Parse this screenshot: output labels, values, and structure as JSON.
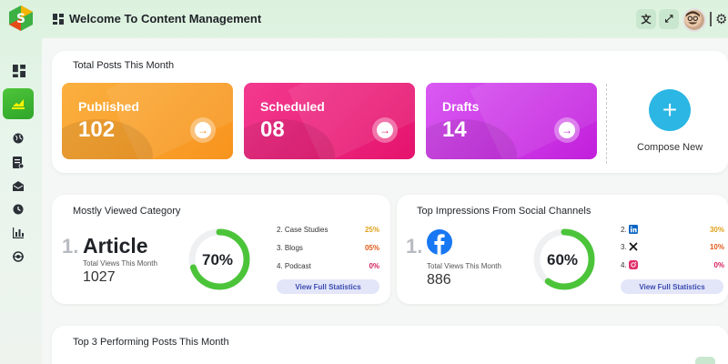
{
  "header": {
    "title": "Welcome To Content Management",
    "translate_icon": "translate-icon",
    "fullscreen_icon": "fullscreen-icon",
    "settings_icon": "gear-icon"
  },
  "sidebar": {
    "items": [
      "dashboard-icon",
      "chart-icon",
      "globe-icon",
      "document-icon",
      "mail-icon",
      "clock-icon",
      "bar-chart-icon",
      "settings-swap-icon"
    ]
  },
  "total_posts": {
    "title": "Total Posts This Month",
    "cards": [
      {
        "label": "Published",
        "value": "102",
        "color": "#f9a03a"
      },
      {
        "label": "Scheduled",
        "value": "08",
        "color": "#ea1e7b"
      },
      {
        "label": "Drafts",
        "value": "14",
        "color": "#c92ee3"
      }
    ],
    "compose_label": "Compose New"
  },
  "mostly_viewed": {
    "title": "Mostly Viewed Category",
    "rank": "1.",
    "name": "Article",
    "views_label": "Total Views This Month",
    "views": "1027",
    "percent": "70%",
    "progress": 0.7,
    "items": [
      {
        "label": "2. Case Studies",
        "pct": "25%",
        "color": "#e0a11a"
      },
      {
        "label": "3. Blogs",
        "pct": "05%",
        "color": "#e05a1a"
      },
      {
        "label": "4. Podcast",
        "pct": "0%",
        "color": "#d41f5a"
      }
    ],
    "button": "View Full Statistics"
  },
  "top_impressions": {
    "title": "Top Impressions From Social Channels",
    "rank": "1.",
    "views_label": "Total Views This Month",
    "views": "886",
    "percent": "60%",
    "progress": 0.6,
    "items": [
      {
        "label": "2.",
        "icon": "linkedin-icon",
        "pct": "30%",
        "color": "#e0a11a"
      },
      {
        "label": "3.",
        "icon": "x-icon",
        "pct": "10%",
        "color": "#e05a1a"
      },
      {
        "label": "4.",
        "icon": "instagram-icon",
        "pct": "0%",
        "color": "#d41f5a"
      }
    ],
    "button": "View Full Statistics"
  },
  "top_posts": {
    "title": "Top 3 Performing Posts This Month"
  }
}
